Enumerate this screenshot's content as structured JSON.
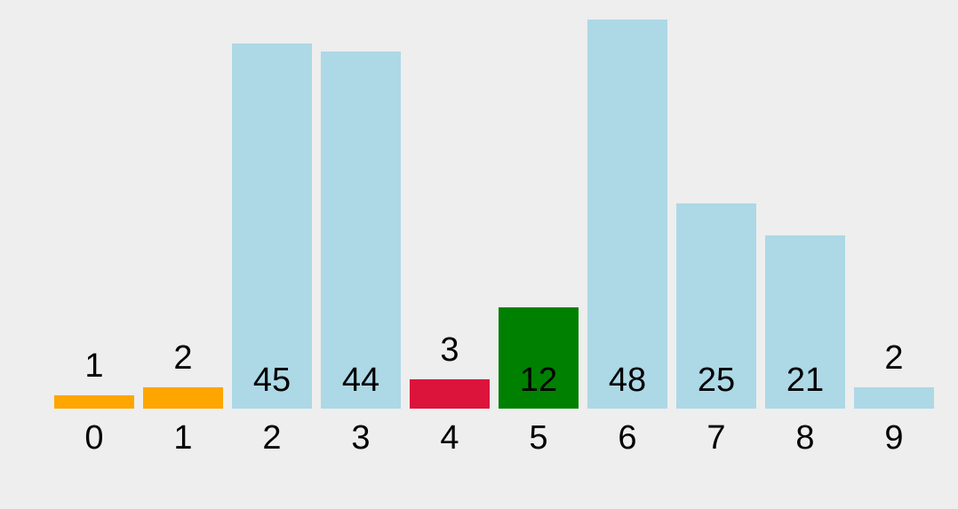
{
  "chart_data": {
    "type": "bar",
    "categories": [
      "0",
      "1",
      "2",
      "3",
      "4",
      "5",
      "6",
      "7",
      "8",
      "9"
    ],
    "values": [
      1,
      2,
      45,
      44,
      3,
      12,
      48,
      25,
      21,
      2
    ],
    "colors": [
      "#ffa500",
      "#ffa500",
      "#add8e6",
      "#add8e6",
      "#dc143c",
      "#008000",
      "#add8e6",
      "#add8e6",
      "#add8e6",
      "#add8e6"
    ]
  }
}
